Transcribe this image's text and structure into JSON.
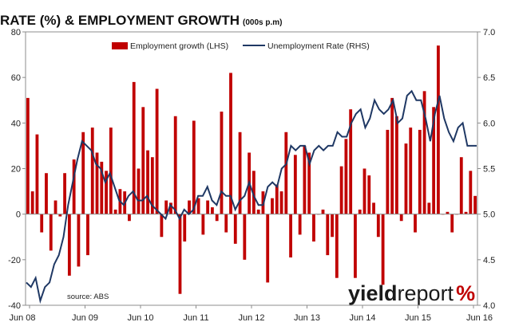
{
  "chart_data": {
    "type": "bar+line",
    "title": "UNEMPLOYMENT RATE (%) & EMPLOYMENT GROWTH",
    "subtitle": "(000s p.m)",
    "source": "source: ABS",
    "logo": {
      "bold": "yield",
      "light": "report",
      "pct": "%"
    },
    "x_ticks": [
      "Jun 08",
      "Jun 09",
      "Jun 10",
      "Jun 11",
      "Jun 12",
      "Jun 13",
      "Jun 14",
      "Jun 15",
      "Jun 16"
    ],
    "y_left_ticks": [
      "80",
      "60",
      "40",
      "20",
      "0",
      "-20",
      "-40"
    ],
    "y_right_ticks": [
      "7.0",
      "6.5",
      "6.0",
      "5.5",
      "5.0",
      "4.5",
      "4.0"
    ],
    "ylim_left": [
      -40,
      80
    ],
    "ylim_right": [
      4.0,
      7.0
    ],
    "grid": false,
    "legend_position": "top",
    "colors": {
      "bars": "#c00000",
      "line": "#1f3864"
    },
    "series": [
      {
        "name": "Employment growth (LHS)",
        "axis": "left",
        "kind": "bar",
        "values": [
          51,
          10,
          35,
          -8,
          18,
          -16,
          6,
          -1,
          18,
          -27,
          24,
          -23,
          36,
          -18,
          38,
          27,
          23,
          19,
          38,
          2,
          11,
          10,
          -3,
          58,
          20,
          47,
          28,
          25,
          55,
          -10,
          6,
          5,
          43,
          -35,
          -12,
          6,
          41,
          7,
          -9,
          6,
          3,
          -3,
          45,
          -8,
          62,
          -13,
          36,
          -20,
          27,
          19,
          2,
          10,
          -30,
          7,
          13,
          10,
          36,
          -19,
          26,
          -9,
          30,
          27,
          -12,
          0,
          2,
          -18,
          -10,
          -28,
          21,
          33,
          46,
          -28,
          2,
          20,
          17,
          5,
          -10,
          -31,
          37,
          51,
          43,
          -3,
          31,
          38,
          -8,
          37,
          54,
          5,
          47,
          74,
          0,
          1,
          -8,
          0,
          25,
          1,
          19,
          8
        ]
      },
      {
        "name": "Unemployment Rate (RHS)",
        "axis": "right",
        "kind": "line",
        "values": [
          4.25,
          4.2,
          4.3,
          4.05,
          4.2,
          4.25,
          4.45,
          4.55,
          4.75,
          5.1,
          5.35,
          5.6,
          5.8,
          5.75,
          5.7,
          5.55,
          5.5,
          5.35,
          5.45,
          5.3,
          5.15,
          5.1,
          5.2,
          5.25,
          5.15,
          5.15,
          5.2,
          5.1,
          5.05,
          5.0,
          4.95,
          5.1,
          5.05,
          4.95,
          5.05,
          5.0,
          5.05,
          5.2,
          5.2,
          5.3,
          5.15,
          5.1,
          5.25,
          5.2,
          5.2,
          5.05,
          5.15,
          5.2,
          5.35,
          5.2,
          5.1,
          5.1,
          5.3,
          5.35,
          5.3,
          5.5,
          5.55,
          5.75,
          5.7,
          5.75,
          5.75,
          5.55,
          5.7,
          5.75,
          5.7,
          5.75,
          5.75,
          5.9,
          5.85,
          5.85,
          6.0,
          6.1,
          6.15,
          5.95,
          6.05,
          6.25,
          6.15,
          6.1,
          6.15,
          6.25,
          6.0,
          6.05,
          6.3,
          6.35,
          6.25,
          6.25,
          6.05,
          5.8,
          6.1,
          6.3,
          6.05,
          5.9,
          5.8,
          5.95,
          6.0,
          5.75,
          5.75,
          5.75
        ]
      }
    ]
  }
}
